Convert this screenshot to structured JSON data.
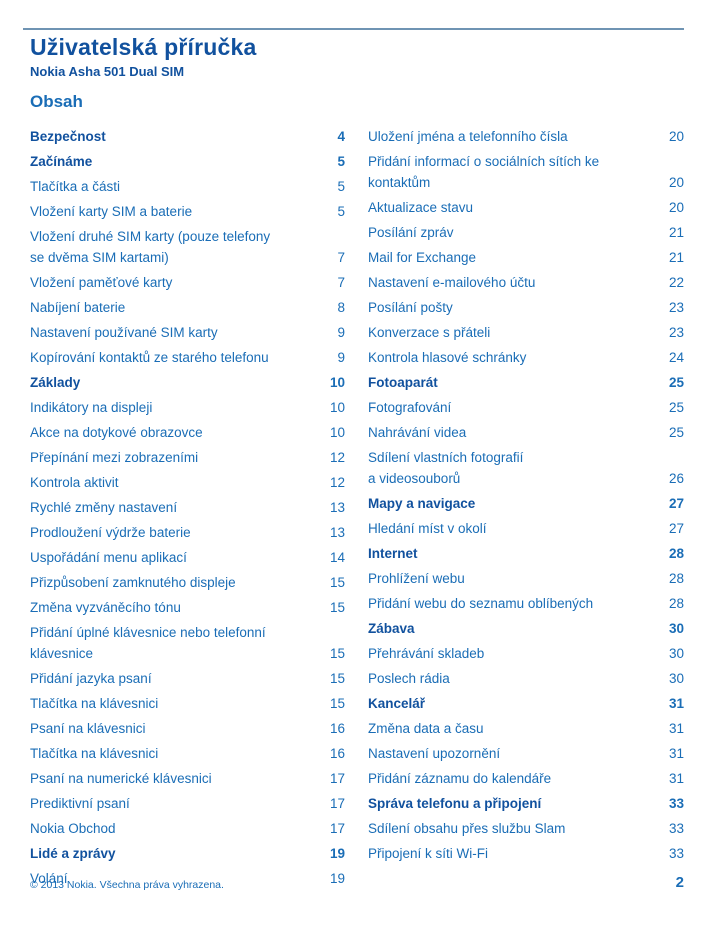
{
  "header": {
    "title": "Uživatelská příručka",
    "subtitle": "Nokia Asha 501 Dual SIM",
    "toc_heading": "Obsah"
  },
  "colors": {
    "heading_blue": "#11519e",
    "entry_blue": "#1a6db6",
    "rule_blue": "#6f94b3",
    "background": "#ffffff"
  },
  "toc": {
    "left": [
      {
        "label": "Bezpečnost",
        "page": "4",
        "section": true
      },
      {
        "label": "Začínáme",
        "page": "5",
        "section": true
      },
      {
        "label": "Tlačítka a části",
        "page": "5",
        "section": false
      },
      {
        "label": "Vložení karty SIM a baterie",
        "page": "5",
        "section": false
      },
      {
        "label": "Vložení druhé SIM karty (pouze telefony\nse dvěma SIM kartami)",
        "page": "7",
        "section": false
      },
      {
        "label": "Vložení paměťové karty",
        "page": "7",
        "section": false
      },
      {
        "label": "Nabíjení baterie",
        "page": "8",
        "section": false
      },
      {
        "label": "Nastavení používané SIM karty",
        "page": "9",
        "section": false
      },
      {
        "label": "Kopírování kontaktů ze starého telefonu",
        "page": "9",
        "section": false
      },
      {
        "label": "Základy",
        "page": "10",
        "section": true
      },
      {
        "label": "Indikátory na displeji",
        "page": "10",
        "section": false
      },
      {
        "label": "Akce na dotykové obrazovce",
        "page": "10",
        "section": false
      },
      {
        "label": "Přepínání mezi zobrazeními",
        "page": "12",
        "section": false
      },
      {
        "label": "Kontrola aktivit",
        "page": "12",
        "section": false
      },
      {
        "label": "Rychlé změny nastavení",
        "page": "13",
        "section": false
      },
      {
        "label": "Prodloužení výdrže baterie",
        "page": "13",
        "section": false
      },
      {
        "label": "Uspořádání menu aplikací",
        "page": "14",
        "section": false
      },
      {
        "label": "Přizpůsobení zamknutého displeje",
        "page": "15",
        "section": false
      },
      {
        "label": "Změna vyzváněcího tónu",
        "page": "15",
        "section": false
      },
      {
        "label": "Přidání úplné klávesnice nebo telefonní\nklávesnice",
        "page": "15",
        "section": false
      },
      {
        "label": "Přidání jazyka psaní",
        "page": "15",
        "section": false
      },
      {
        "label": "Tlačítka na klávesnici",
        "page": "15",
        "section": false
      },
      {
        "label": "Psaní na klávesnici",
        "page": "16",
        "section": false
      },
      {
        "label": "Tlačítka na klávesnici",
        "page": "16",
        "section": false
      },
      {
        "label": "Psaní na numerické klávesnici",
        "page": "17",
        "section": false
      },
      {
        "label": "Prediktivní psaní",
        "page": "17",
        "section": false
      },
      {
        "label": "Nokia Obchod",
        "page": "17",
        "section": false
      },
      {
        "label": "Lidé a zprávy",
        "page": "19",
        "section": true
      },
      {
        "label": "Volání",
        "page": "19",
        "section": false
      }
    ],
    "right": [
      {
        "label": "Uložení jména a telefonního čísla",
        "page": "20",
        "section": false
      },
      {
        "label": "Přidání informací o sociálních sítích ke\nkontaktům",
        "page": "20",
        "section": false
      },
      {
        "label": "Aktualizace stavu",
        "page": "20",
        "section": false
      },
      {
        "label": "Posílání zpráv",
        "page": "21",
        "section": false
      },
      {
        "label": "Mail for Exchange",
        "page": "21",
        "section": false
      },
      {
        "label": "Nastavení e-mailového účtu",
        "page": "22",
        "section": false
      },
      {
        "label": "Posílání pošty",
        "page": "23",
        "section": false
      },
      {
        "label": "Konverzace s přáteli",
        "page": "23",
        "section": false
      },
      {
        "label": "Kontrola hlasové schránky",
        "page": "24",
        "section": false
      },
      {
        "label": "Fotoaparát",
        "page": "25",
        "section": true
      },
      {
        "label": "Fotografování",
        "page": "25",
        "section": false
      },
      {
        "label": "Nahrávání videa",
        "page": "25",
        "section": false
      },
      {
        "label": "Sdílení vlastních fotografií\na videosouborů",
        "page": "26",
        "section": false
      },
      {
        "label": "Mapy a navigace",
        "page": "27",
        "section": true
      },
      {
        "label": "Hledání míst v okolí",
        "page": "27",
        "section": false
      },
      {
        "label": "Internet",
        "page": "28",
        "section": true
      },
      {
        "label": "Prohlížení webu",
        "page": "28",
        "section": false
      },
      {
        "label": "Přidání webu do seznamu oblíbených",
        "page": "28",
        "section": false
      },
      {
        "label": "Zábava",
        "page": "30",
        "section": true
      },
      {
        "label": "Přehrávání skladeb",
        "page": "30",
        "section": false
      },
      {
        "label": "Poslech rádia",
        "page": "30",
        "section": false
      },
      {
        "label": "Kancelář",
        "page": "31",
        "section": true
      },
      {
        "label": "Změna data a času",
        "page": "31",
        "section": false
      },
      {
        "label": "Nastavení upozornění",
        "page": "31",
        "section": false
      },
      {
        "label": "Přidání záznamu do kalendáře",
        "page": "31",
        "section": false
      },
      {
        "label": "Správa telefonu a připojení",
        "page": "33",
        "section": true
      },
      {
        "label": "Sdílení obsahu přes službu Slam",
        "page": "33",
        "section": false
      },
      {
        "label": "Připojení k síti Wi-Fi",
        "page": "33",
        "section": false
      }
    ]
  },
  "footer": {
    "copyright": "© 2013 Nokia. Všechna práva vyhrazena.",
    "page_number": "2"
  }
}
